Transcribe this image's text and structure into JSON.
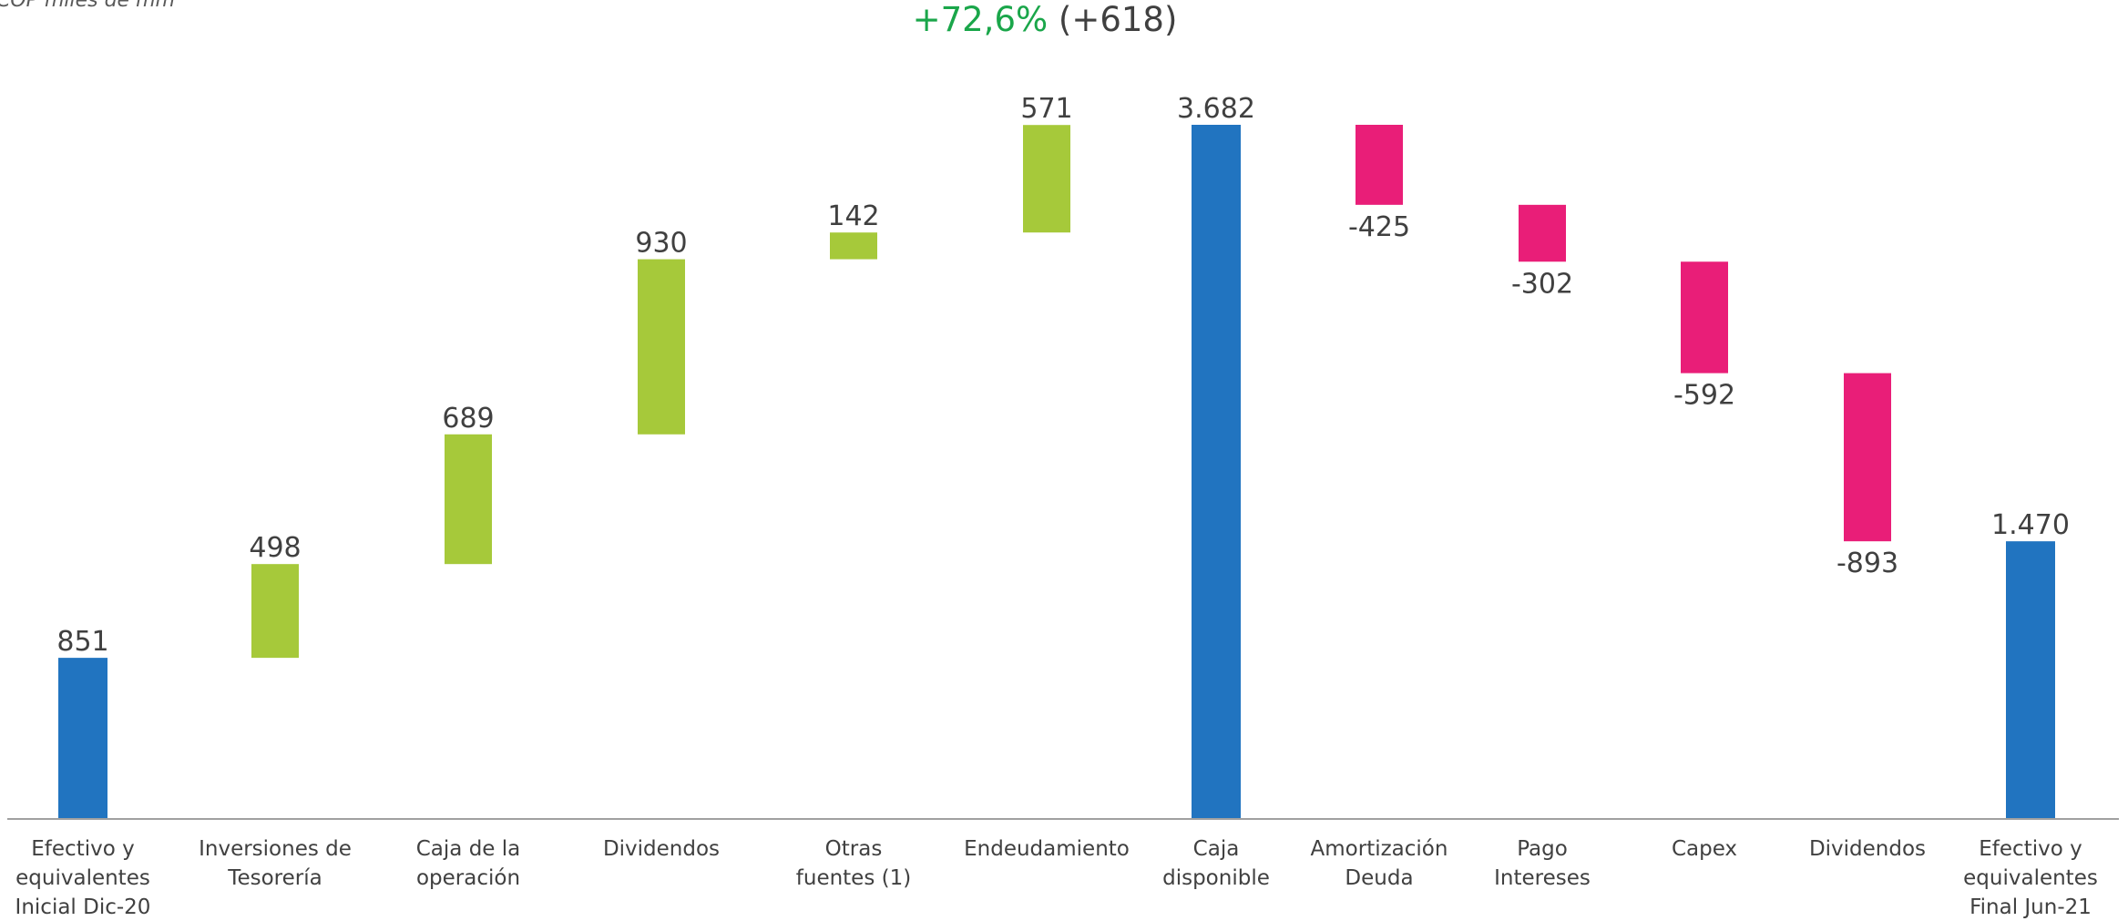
{
  "chart_data": {
    "type": "waterfall",
    "subtitle": "COP miles de mm",
    "title_change": "+72,6%",
    "title_delta": "(+618)",
    "categories": [
      "Efectivo y\nequivalentes\nInicial Dic-20",
      "Inversiones de\nTesorería",
      "Caja de la\noperación",
      "Dividendos",
      "Otras\nfuentes (1)",
      "Endeudamiento",
      "Caja\ndisponible",
      "Amortización\nDeuda",
      "Pago\nIntereses",
      "Capex",
      "Dividendos",
      "Efectivo y\nequivalentes\nFinal  Jun-21"
    ],
    "values": [
      851,
      498,
      689,
      930,
      142,
      571,
      3682,
      -425,
      -302,
      -592,
      -893,
      1470
    ],
    "value_labels": [
      "851",
      "498",
      "689",
      "930",
      "142",
      "571",
      "3.682",
      "-425",
      "-302",
      "-592",
      "-893",
      "1.470"
    ],
    "measure": [
      "total",
      "relative",
      "relative",
      "relative",
      "relative",
      "relative",
      "total",
      "relative",
      "relative",
      "relative",
      "relative",
      "total"
    ],
    "colors": {
      "total": "#2174c0",
      "increase": "#a6c93a",
      "decrease": "#e91e78"
    }
  }
}
